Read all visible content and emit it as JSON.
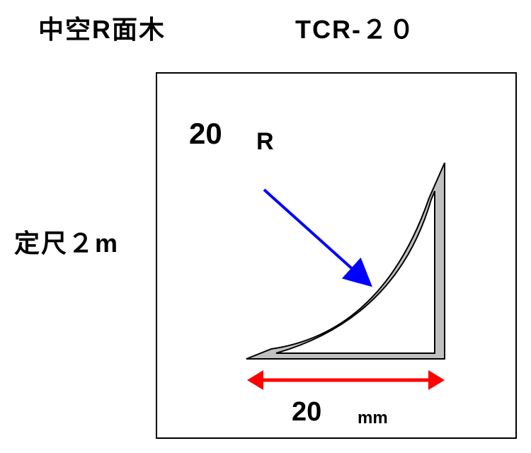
{
  "header": {
    "product_name": "中空R面木",
    "product_code": "TCR-２０"
  },
  "length_label": "定尺２m",
  "diagram": {
    "radius_value": "20",
    "radius_unit": "R",
    "width_value": "20",
    "width_unit": "mm",
    "colors": {
      "profile_fill": "#c0c0c0",
      "profile_stroke": "#000000",
      "radius_arrow": "#0000ff",
      "width_arrow": "#ff0000"
    }
  }
}
